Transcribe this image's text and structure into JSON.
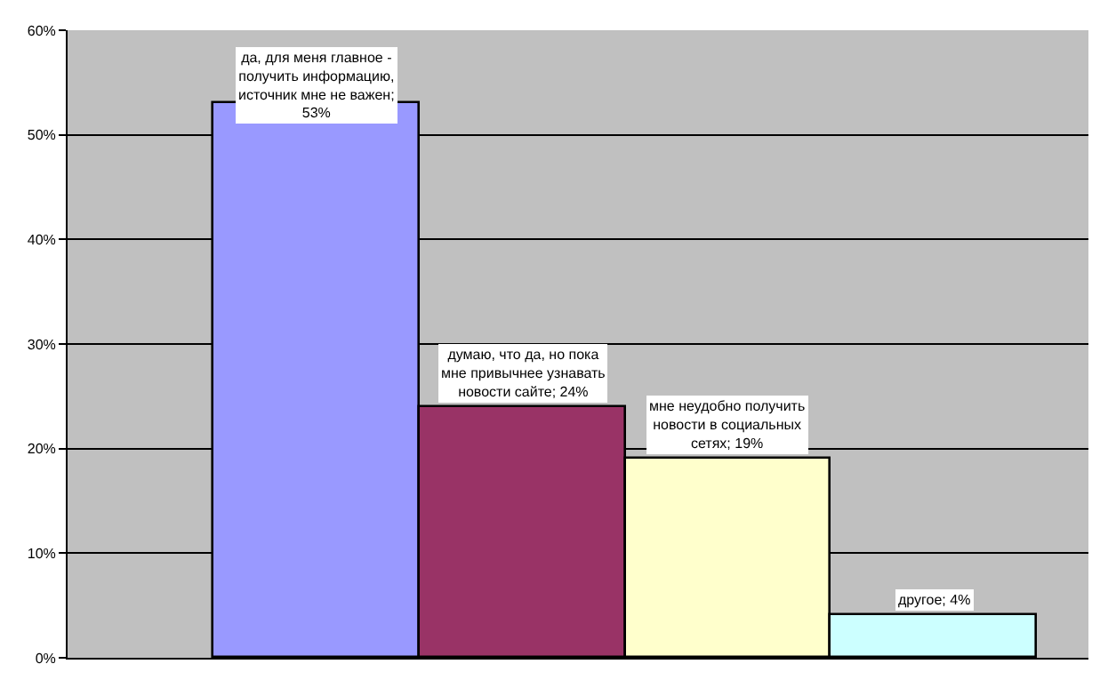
{
  "chart_data": {
    "type": "bar",
    "categories": [
      null,
      null,
      null,
      null
    ],
    "values": [
      53,
      24,
      19,
      4
    ],
    "colors": [
      "#9999ff",
      "#993366",
      "#ffffcc",
      "#ccffff"
    ],
    "value_labels": [
      "да, для меня главное - получить информацию, источник мне не важен; 53%",
      "думаю, что да, но пока мне привычнее узнавать новости сайте; 24%",
      "мне неудобно получить новости в социальных сетях; 19%",
      "другое; 4%"
    ],
    "ylim": [
      0,
      60
    ],
    "yticks": [
      {
        "value": 0,
        "label": "0%"
      },
      {
        "value": 10,
        "label": "10%"
      },
      {
        "value": 20,
        "label": "20%"
      },
      {
        "value": 30,
        "label": "30%"
      },
      {
        "value": 40,
        "label": "40%"
      },
      {
        "value": 50,
        "label": "50%"
      },
      {
        "value": 60,
        "label": "60%"
      }
    ],
    "grid": "y"
  }
}
